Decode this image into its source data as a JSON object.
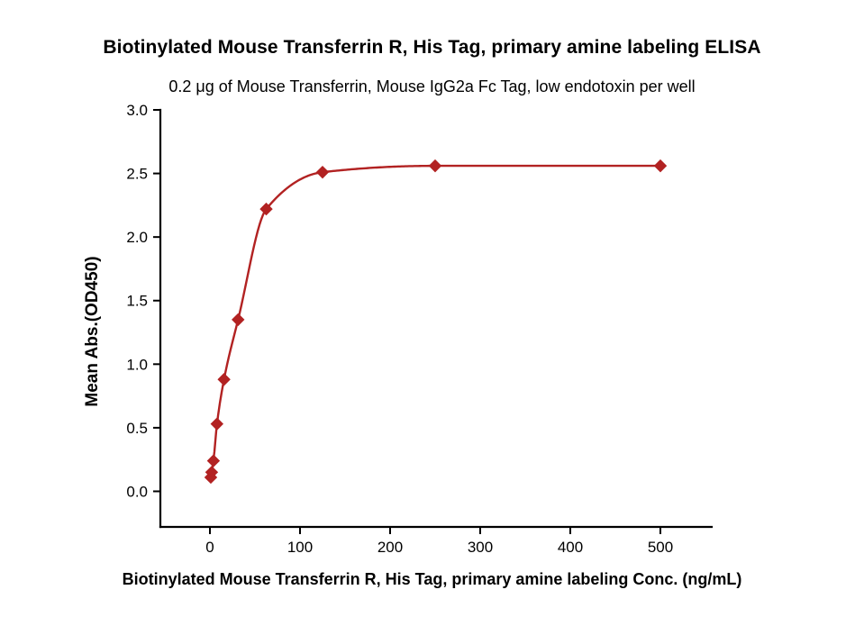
{
  "chart_data": {
    "type": "line",
    "title": "Biotinylated Mouse Transferrin R, His Tag, primary amine labeling ELISA",
    "subtitle": "0.2 μg of Mouse Transferrin, Mouse IgG2a Fc Tag, low endotoxin per well",
    "xlabel": "Biotinylated Mouse Transferrin R, His Tag, primary amine labeling Conc. (ng/mL)",
    "ylabel": "Mean Abs.(OD450)",
    "x_ticks": [
      0,
      100,
      200,
      300,
      400,
      500
    ],
    "y_tick_labels": [
      "0.0",
      "0.5",
      "1.0",
      "1.5",
      "2.0",
      "2.5",
      "3.0"
    ],
    "xlim": [
      -55,
      557
    ],
    "ylim": [
      -0.28,
      3.0
    ],
    "legend": "none",
    "grid": "off",
    "points": [
      [
        0.98,
        0.11
      ],
      [
        1.95,
        0.15
      ],
      [
        3.91,
        0.24
      ],
      [
        7.81,
        0.53
      ],
      [
        15.63,
        0.88
      ],
      [
        31.25,
        1.35
      ],
      [
        62.5,
        2.22
      ],
      [
        125,
        2.51
      ],
      [
        250,
        2.56
      ],
      [
        500,
        2.56
      ]
    ],
    "colors": {
      "series": "#b22222",
      "axis": "#000000"
    }
  }
}
